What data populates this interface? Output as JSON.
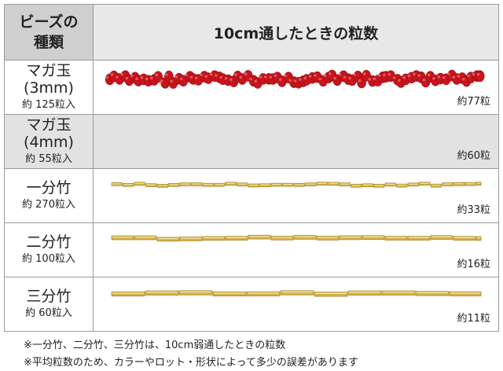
{
  "header": {
    "type_lines": [
      "ビーズの",
      "種類"
    ],
    "result_title": "10cm通したときの粒数"
  },
  "rows": [
    {
      "name_lines": [
        "マガ玉",
        "(3mm)"
      ],
      "count": "約 125粒入",
      "result": "約77粒"
    },
    {
      "name_lines": [
        "マガ玉",
        "(4mm)"
      ],
      "count": "約 55粒入",
      "result": "約60粒"
    },
    {
      "name_lines": [
        "一分竹"
      ],
      "count": "約 270粒入",
      "result": "約33粒"
    },
    {
      "name_lines": [
        "二分竹"
      ],
      "count": "約 100粒入",
      "result": "約16粒"
    },
    {
      "name_lines": [
        "三分竹"
      ],
      "count": "約 60粒入",
      "result": "約11粒"
    }
  ],
  "notes": [
    "※一分竹、二分竹、三分竹は、10cm弱通したときの粒数",
    "※平均粒数のため、カラーやロット・形状によって多少の誤差があります"
  ]
}
